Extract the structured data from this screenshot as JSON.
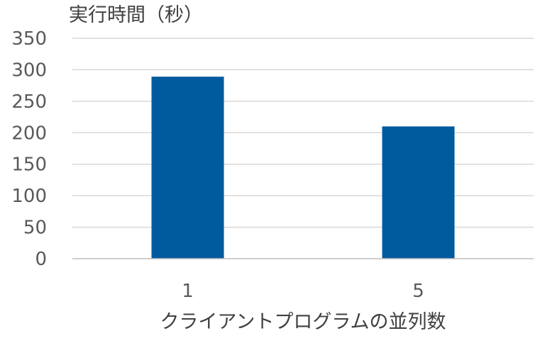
{
  "chart_data": {
    "type": "bar",
    "title": "",
    "ylabel": "実行時間（秒）",
    "xlabel": "クライアントプログラムの並列数",
    "categories": [
      "1",
      "5"
    ],
    "values": [
      289,
      210
    ],
    "ylim": [
      0,
      350
    ],
    "yticks": [
      0,
      50,
      100,
      150,
      200,
      250,
      300,
      350
    ],
    "grid": true,
    "bar_color": "#005a9e"
  }
}
